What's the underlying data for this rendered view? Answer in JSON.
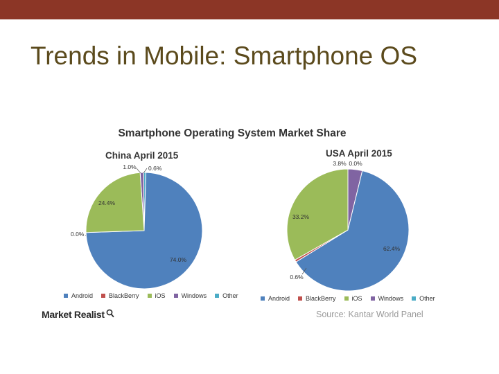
{
  "header": {
    "title": "Trends in Mobile: Smartphone OS"
  },
  "figure": {
    "title": "Smartphone Operating System Market Share"
  },
  "chart_data": [
    {
      "type": "pie",
      "title": "China April 2015",
      "categories": [
        "Android",
        "BlackBerry",
        "iOS",
        "Windows",
        "Other"
      ],
      "values": [
        74.0,
        0.0,
        24.4,
        1.0,
        0.6
      ],
      "labels": [
        "74.0%",
        "0.0%",
        "24.4%",
        "1.0%",
        "0.6%"
      ],
      "colors": [
        "#4f81bd",
        "#c0504d",
        "#9bbb59",
        "#8064a2",
        "#4bacc6"
      ]
    },
    {
      "type": "pie",
      "title": "USA April 2015",
      "categories": [
        "Android",
        "BlackBerry",
        "iOS",
        "Windows",
        "Other"
      ],
      "values": [
        62.4,
        0.6,
        33.2,
        3.8,
        0.0
      ],
      "labels": [
        "62.4%",
        "0.6%",
        "33.2%",
        "3.8%",
        "0.0%"
      ],
      "colors": [
        "#4f81bd",
        "#c0504d",
        "#9bbb59",
        "#8064a2",
        "#4bacc6"
      ]
    }
  ],
  "footer": {
    "brand": "Market Realist",
    "brand_icon": "magnifier-icon",
    "source": "Source: Kantar World Panel"
  }
}
